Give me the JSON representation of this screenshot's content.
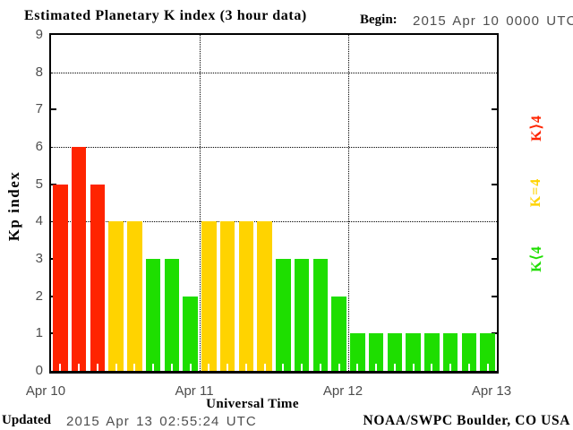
{
  "header": {
    "title": "Estimated Planetary K index (3 hour data)",
    "begin_label": "Begin:",
    "begin_value": "2015 Apr 10 0000 UTC"
  },
  "footer": {
    "updated_label": "Updated",
    "updated_value": "2015 Apr 13 02:55:24 UTC",
    "source": "NOAA/SWPC Boulder, CO USA"
  },
  "chart_data": {
    "type": "bar",
    "title": "Estimated Planetary K index (3 hour data)",
    "xlabel": "Universal Time",
    "ylabel": "Kp index",
    "ylim": [
      0,
      9
    ],
    "yticks": [
      0,
      1,
      2,
      3,
      4,
      5,
      6,
      7,
      8,
      9
    ],
    "grid_y": [
      4,
      6,
      8
    ],
    "side_tick_y": [
      1,
      2,
      3,
      5,
      7
    ],
    "bin_hours": 3,
    "begin": "2015 Apr 10 0000 UTC",
    "x_day_labels": [
      "Apr 10",
      "Apr 11",
      "Apr 12",
      "Apr 13"
    ],
    "values": [
      5,
      6,
      5,
      4,
      4,
      3,
      3,
      2,
      4,
      4,
      4,
      4,
      3,
      3,
      3,
      2,
      1,
      1,
      1,
      1,
      1,
      1,
      1,
      1
    ],
    "colors": {
      "k_gt_4": "#FF2400",
      "k_eq_4": "#FFD300",
      "k_lt_4": "#1EDE00"
    },
    "legend": [
      {
        "label": "K⟩4",
        "color": "#FF2400"
      },
      {
        "label": "K=4",
        "color": "#FFD300"
      },
      {
        "label": "K⟨4",
        "color": "#1EDE00"
      }
    ],
    "legend_position": "right"
  }
}
